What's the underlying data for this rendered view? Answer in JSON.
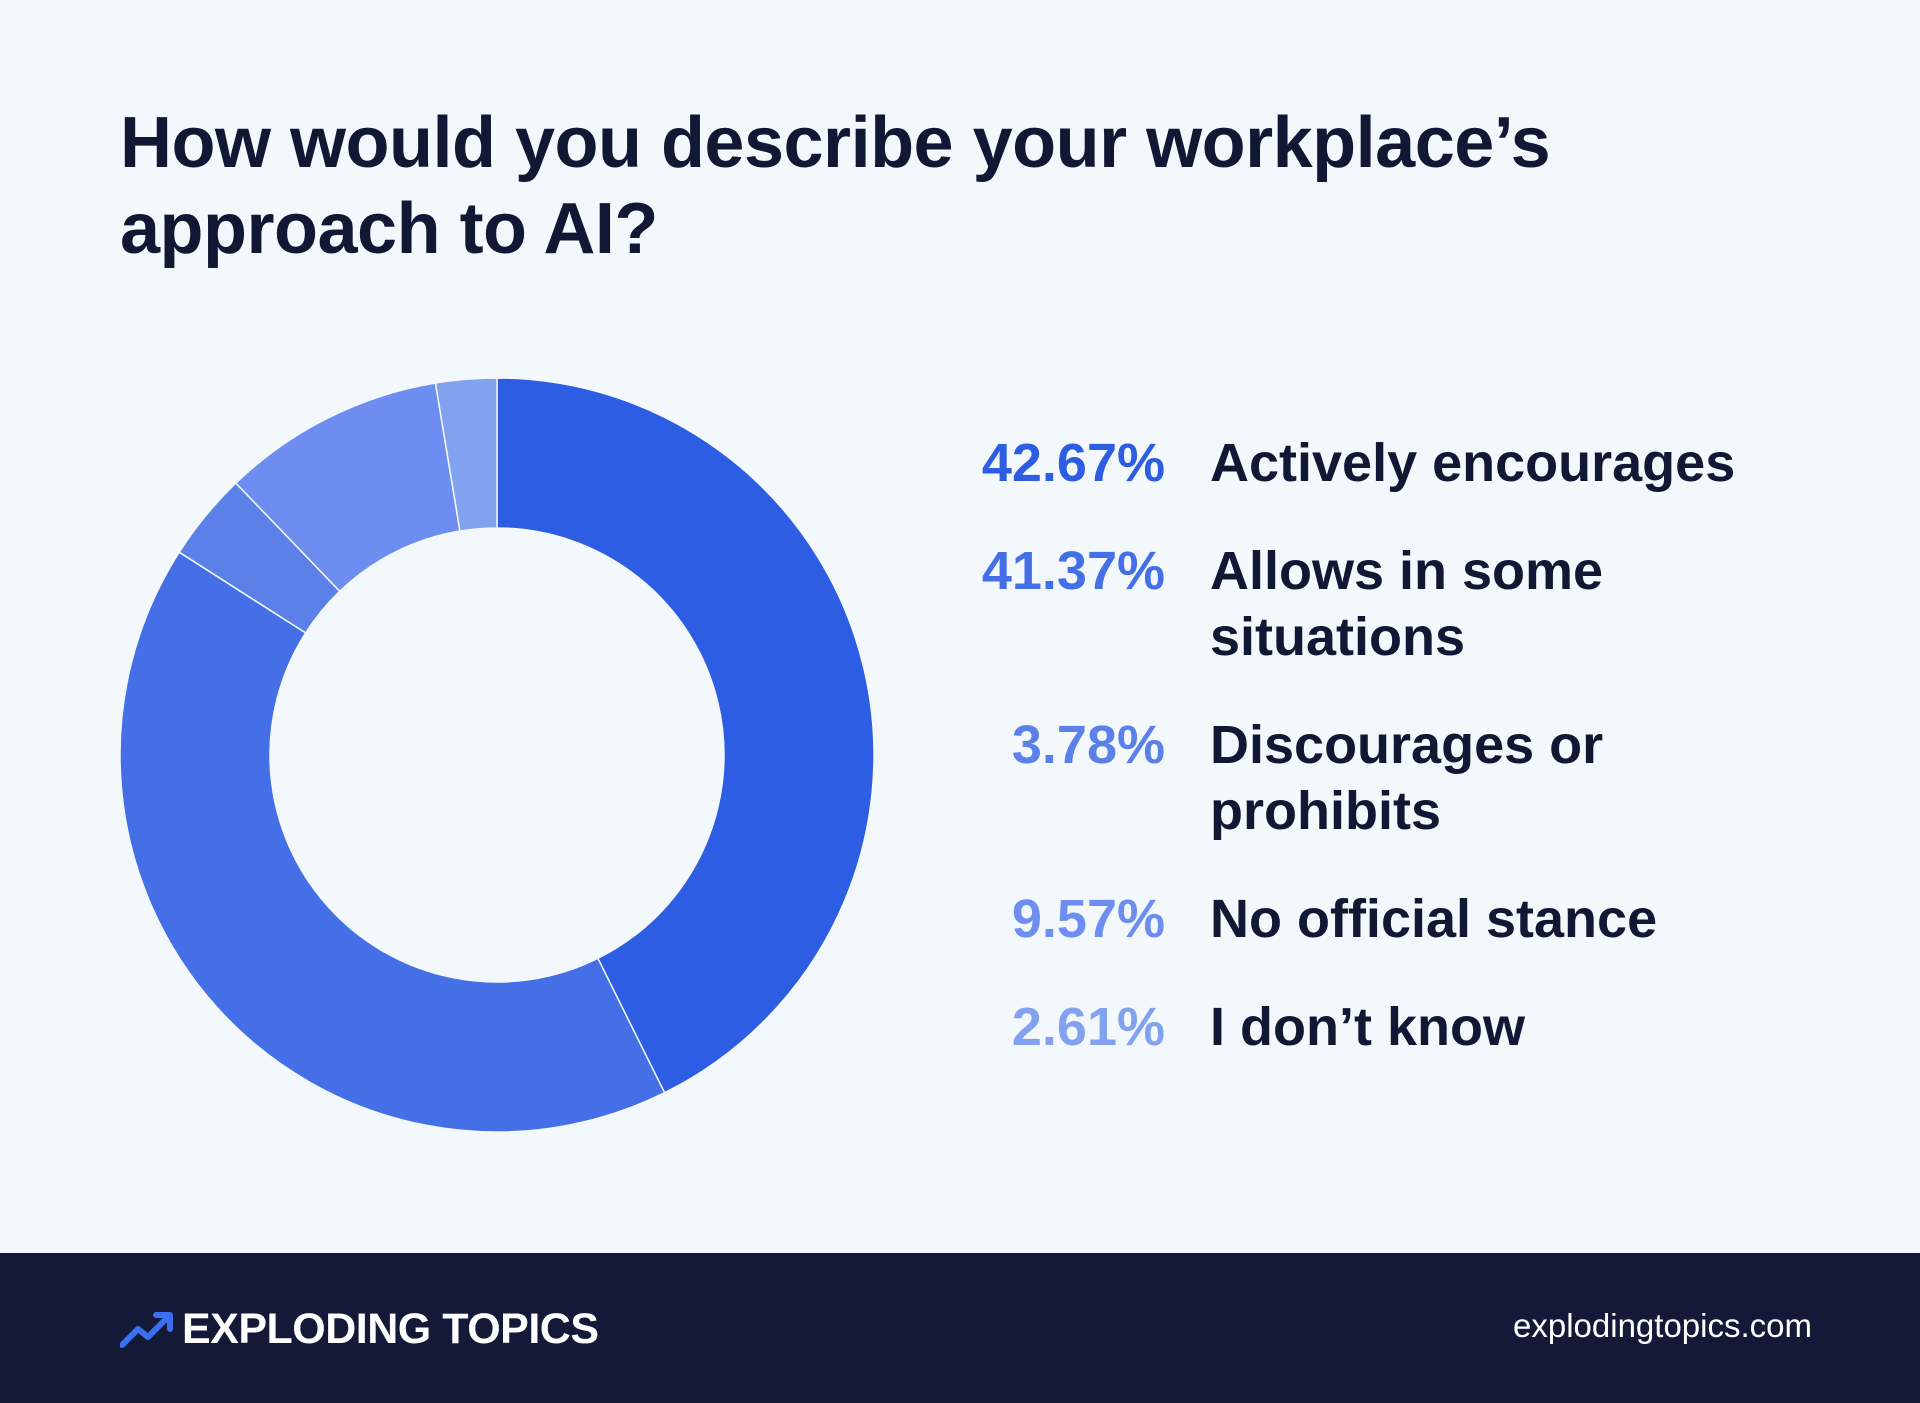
{
  "chart_data": {
    "type": "pie",
    "style": "donut",
    "title": "How would you describe your workplace’s approach to AI?",
    "categories": [
      "Actively encourages",
      "Allows in some situations",
      "Discourages or prohibits",
      "No official stance",
      "I don’t know"
    ],
    "values": [
      42.67,
      41.37,
      3.78,
      9.57,
      2.61
    ],
    "labels": [
      "42.67%",
      "41.37%",
      "3.78%",
      "9.57%",
      "2.61%"
    ],
    "colors": [
      "#2d5de2",
      "#446fe6",
      "#5b80e8",
      "#6d8ef0",
      "#82a2ef"
    ],
    "legend_position": "right"
  },
  "footer": {
    "brand": "EXPLODING TOPICS",
    "brand_icon": "trend-arrow-icon",
    "url": "explodingtopics.com"
  }
}
